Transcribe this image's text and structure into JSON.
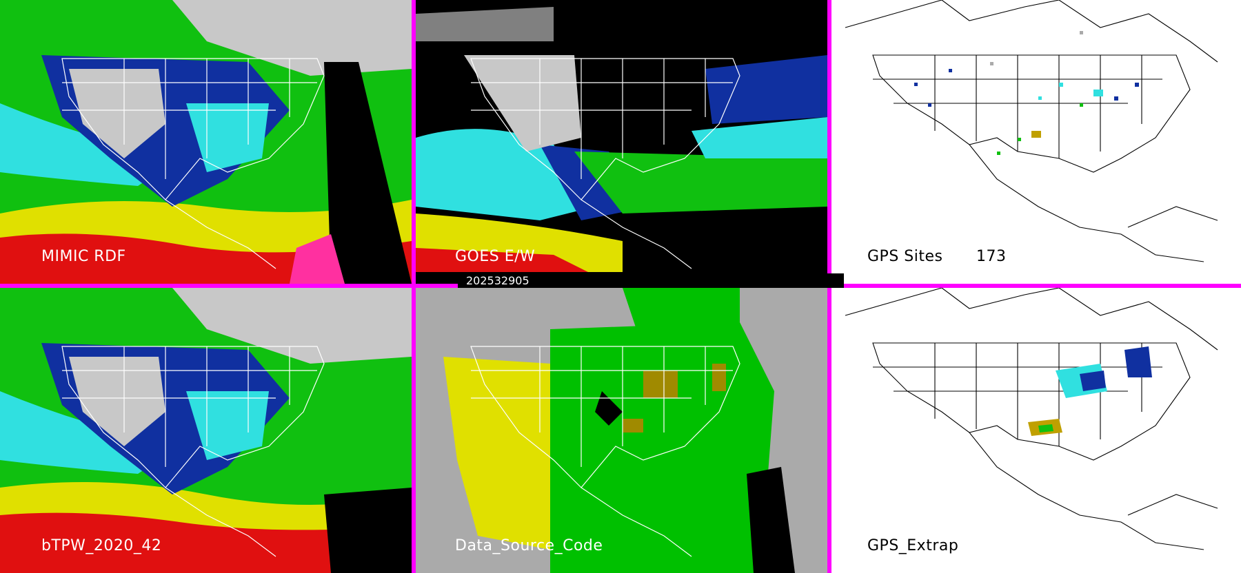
{
  "timestamp": "202532905",
  "panels": [
    {
      "id": "mimic",
      "label": "MIMIC RDF"
    },
    {
      "id": "goes",
      "label": "GOES E/W"
    },
    {
      "id": "gps-sites",
      "label": "GPS Sites",
      "count": "173"
    },
    {
      "id": "btpw",
      "label": "bTPW_2020_42"
    },
    {
      "id": "source",
      "label": "Data_Source_Code"
    },
    {
      "id": "gps-extrap",
      "label": "GPS_Extrap"
    }
  ],
  "colors": {
    "divider": "#ff00ff",
    "tpw_scale": [
      "#c8c8c8",
      "#1030a0",
      "#3060d0",
      "#30e0e0",
      "#10c010",
      "#e0e000",
      "#c0a000",
      "#e01010"
    ],
    "source_satellite": "#00c000",
    "source_model": "#e0e000",
    "source_gps": "#a08a00",
    "source_missing": "#aaaaaa"
  }
}
